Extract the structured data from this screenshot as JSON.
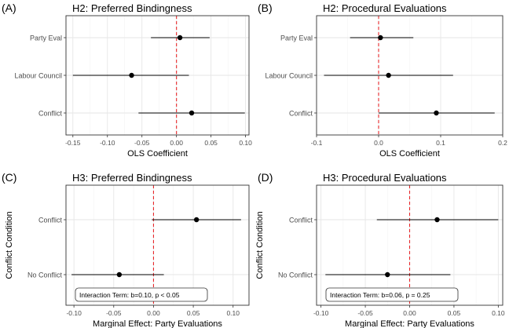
{
  "chart_data": [
    {
      "type": "scatter",
      "panel_label": "(A)",
      "title": "H2: Preferred Bindingness",
      "xlabel": "OLS Coefficient",
      "ylabel": "",
      "xlim": [
        -0.16,
        0.105
      ],
      "x_ticks": [
        -0.15,
        -0.1,
        -0.05,
        0.0,
        0.05,
        0.1
      ],
      "x_tick_labels": [
        "-0.15",
        "-0.10",
        "-0.05",
        "0.00",
        "0.05",
        "0.10"
      ],
      "categories": [
        "Party Eval",
        "Labour Council",
        "Conflict"
      ],
      "estimates": [
        0.005,
        -0.065,
        0.022
      ],
      "ci_low": [
        -0.037,
        -0.15,
        -0.055
      ],
      "ci_high": [
        0.048,
        0.018,
        0.099
      ],
      "reference_line": 0,
      "annotation": ""
    },
    {
      "type": "scatter",
      "panel_label": "(B)",
      "title": "H2: Procedural Evaluations",
      "xlabel": "OLS Coefficient",
      "ylabel": "",
      "xlim": [
        -0.1,
        0.2
      ],
      "x_ticks": [
        -0.1,
        0.0,
        0.1,
        0.2
      ],
      "x_tick_labels": [
        "-0.1",
        "0.0",
        "0.1",
        "0.2"
      ],
      "categories": [
        "Party Eval",
        "Labour Council",
        "Conflict"
      ],
      "estimates": [
        0.003,
        0.016,
        0.093
      ],
      "ci_low": [
        -0.046,
        -0.088,
        0.0
      ],
      "ci_high": [
        0.056,
        0.12,
        0.187
      ],
      "reference_line": 0,
      "annotation": ""
    },
    {
      "type": "scatter",
      "panel_label": "(C)",
      "title": "H3: Preferred Bindingness",
      "xlabel": "Marginal Effect: Party Evaluations",
      "ylabel": "Conflict Condition",
      "xlim": [
        -0.11,
        0.12
      ],
      "x_ticks": [
        -0.1,
        -0.05,
        0.0,
        0.05,
        0.1
      ],
      "x_tick_labels": [
        "-0.10",
        "-0.05",
        "0.00",
        "0.05",
        "0.10"
      ],
      "categories": [
        "Conflict",
        "No Conflict"
      ],
      "estimates": [
        0.054,
        -0.043
      ],
      "ci_low": [
        -0.002,
        -0.103
      ],
      "ci_high": [
        0.11,
        0.013
      ],
      "reference_line": 0,
      "annotation": "Interaction Term: b=0.10, p < 0.05"
    },
    {
      "type": "scatter",
      "panel_label": "(D)",
      "title": "H3: Procedural Evaluations",
      "xlabel": "Marginal Effect: Party Evaluations",
      "ylabel": "Conflict Condition",
      "xlim": [
        -0.105,
        0.105
      ],
      "x_ticks": [
        -0.1,
        -0.05,
        0.0,
        0.05,
        0.1
      ],
      "x_tick_labels": [
        "-0.10",
        "-0.05",
        "0.00",
        "0.05",
        "0.10"
      ],
      "categories": [
        "Conflict",
        "No Conflict"
      ],
      "estimates": [
        0.031,
        -0.025
      ],
      "ci_low": [
        -0.037,
        -0.095
      ],
      "ci_high": [
        0.1,
        0.046
      ],
      "reference_line": 0,
      "annotation": "Interaction Term: b=0.06, p = 0.25"
    }
  ],
  "colors": {
    "point": "#000000",
    "interval": "#000000",
    "reference_line": "#e8282b",
    "grid_major": "#e6e6e6",
    "grid_minor": "#f3f3f3",
    "panel_border": "#333333",
    "axis_text": "#4d4d4d"
  },
  "grid": true
}
